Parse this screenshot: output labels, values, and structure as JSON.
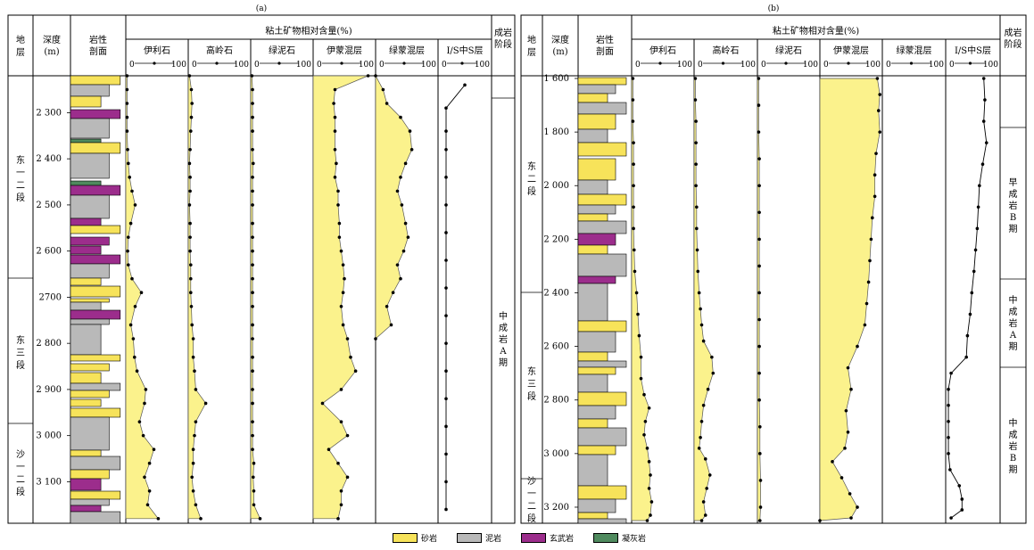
{
  "panels": [
    {
      "label": "(a)",
      "header": {
        "stratum": "地层",
        "depth": "深度\n(m)",
        "litho": "岩性\n剖面",
        "clay_group": "粘土矿物相对含量(%)",
        "stage": "成岩\n阶段"
      },
      "columns": [
        "伊利石",
        "高岭石",
        "绿泥石",
        "伊蒙混层",
        "绿蒙混层",
        "I/S中S层"
      ],
      "scale_min": "0",
      "scale_max": "100",
      "depth_ticks": [
        "2 300",
        "2 400",
        "2 500",
        "2 600",
        "2700",
        "2 800",
        "2 900",
        "3 000",
        "3 100"
      ],
      "depth_values": [
        2300,
        2400,
        2500,
        2600,
        2700,
        2800,
        2900,
        3000,
        3100
      ],
      "strata": [
        "东一二段",
        "东三段",
        "沙一二段"
      ],
      "stages": [
        "中成岩A期"
      ]
    },
    {
      "label": "(b)",
      "header": {
        "stratum": "地层",
        "depth": "深度\n(m)",
        "litho": "岩性\n剖面",
        "clay_group": "粘土矿物相对含量(%)",
        "stage": "成岩\n阶段"
      },
      "columns": [
        "伊利石",
        "高岭石",
        "绿泥石",
        "伊蒙混层",
        "绿蒙混层",
        "I/S中S层"
      ],
      "scale_min": "0",
      "scale_max": "100",
      "depth_ticks": [
        "1 600",
        "1 800",
        "2 000",
        "2 200",
        "2 400",
        "2 600",
        "2 800",
        "3 000",
        "3 200"
      ],
      "depth_values": [
        1600,
        1800,
        2000,
        2200,
        2400,
        2600,
        2800,
        3000,
        3200
      ],
      "strata": [
        "东二段",
        "东三段",
        "沙一二段"
      ],
      "stages": [
        "早成岩B期",
        "中成岩A期",
        "中成岩B期"
      ]
    }
  ],
  "legend": [
    {
      "label": "砂岩",
      "color": "#f7e35a"
    },
    {
      "label": "泥岩",
      "color": "#b9b9b9"
    },
    {
      "label": "玄武岩",
      "color": "#9c2d8c"
    },
    {
      "label": "凝灰岩",
      "color": "#4f8a5e"
    }
  ],
  "colors": {
    "fill": "#fbf28c",
    "sandstone": "#f7e35a",
    "mudstone": "#b9b9b9",
    "basalt": "#9c2d8c",
    "tuff": "#4f8a5e"
  },
  "chart_data": [
    {
      "type": "area",
      "title": "(a)",
      "ylabel": "深度(m)",
      "ylim": [
        2220,
        3190
      ],
      "xlim": [
        0,
        100
      ],
      "series": [
        {
          "name": "伊利石",
          "depth": [
            2220,
            2250,
            2280,
            2310,
            2340,
            2380,
            2410,
            2440,
            2470,
            2500,
            2540,
            2570,
            2600,
            2630,
            2660,
            2690,
            2720,
            2760,
            2790,
            2830,
            2860,
            2900,
            2930,
            2970,
            3000,
            3030,
            3060,
            3090,
            3120,
            3150,
            3180
          ],
          "values": [
            2,
            2,
            2,
            2,
            2,
            3,
            4,
            6,
            10,
            15,
            8,
            4,
            3,
            4,
            10,
            25,
            15,
            8,
            12,
            14,
            18,
            32,
            30,
            22,
            28,
            45,
            38,
            30,
            38,
            35,
            52
          ]
        },
        {
          "name": "高岭石",
          "depth": [
            2220,
            2250,
            2280,
            2310,
            2340,
            2380,
            2410,
            2440,
            2470,
            2500,
            2540,
            2570,
            2600,
            2630,
            2660,
            2690,
            2720,
            2760,
            2790,
            2830,
            2860,
            2900,
            2930,
            2970,
            3000,
            3030,
            3060,
            3090,
            3120,
            3150,
            3180
          ],
          "values": [
            2,
            5,
            6,
            5,
            4,
            3,
            2,
            3,
            3,
            2,
            3,
            3,
            3,
            4,
            4,
            4,
            5,
            6,
            8,
            8,
            10,
            12,
            28,
            12,
            10,
            8,
            8,
            6,
            8,
            12,
            20
          ]
        },
        {
          "name": "绿泥石",
          "depth": [
            2220,
            2250,
            2280,
            2310,
            2340,
            2380,
            2410,
            2440,
            2470,
            2500,
            2540,
            2570,
            2600,
            2630,
            2660,
            2690,
            2720,
            2760,
            2790,
            2830,
            2860,
            2900,
            2930,
            2970,
            3000,
            3030,
            3060,
            3090,
            3120,
            3150,
            3180
          ],
          "values": [
            2,
            3,
            3,
            3,
            3,
            3,
            4,
            3,
            3,
            3,
            3,
            3,
            3,
            3,
            3,
            3,
            3,
            3,
            3,
            3,
            3,
            3,
            3,
            3,
            3,
            3,
            5,
            4,
            5,
            5,
            15
          ]
        },
        {
          "name": "伊蒙混层",
          "depth": [
            2220,
            2250,
            2280,
            2310,
            2340,
            2380,
            2410,
            2440,
            2470,
            2500,
            2540,
            2570,
            2600,
            2630,
            2660,
            2690,
            2720,
            2760,
            2790,
            2830,
            2860,
            2900,
            2930,
            2970,
            3000,
            3030,
            3060,
            3090,
            3120,
            3150,
            3180
          ],
          "values": [
            88,
            35,
            33,
            35,
            35,
            35,
            37,
            35,
            40,
            40,
            42,
            42,
            45,
            48,
            50,
            48,
            45,
            48,
            55,
            60,
            68,
            45,
            15,
            45,
            55,
            25,
            40,
            55,
            45,
            45,
            40
          ]
        },
        {
          "name": "绿蒙混层",
          "depth": [
            2220,
            2250,
            2280,
            2310,
            2340,
            2380,
            2410,
            2440,
            2470,
            2500,
            2540,
            2570,
            2600,
            2630,
            2660,
            2690,
            2720,
            2760,
            2790
          ],
          "values": [
            0,
            12,
            18,
            40,
            55,
            58,
            48,
            40,
            35,
            42,
            48,
            52,
            45,
            35,
            40,
            28,
            18,
            25,
            0
          ]
        },
        {
          "name": "I/S中S层",
          "depth": [
            2240,
            2290,
            2340,
            2380,
            2440,
            2500,
            2560,
            2620,
            2680,
            2740,
            2800,
            2860,
            2920,
            2980,
            3040,
            3100,
            3160
          ],
          "values": [
            50,
            15,
            15,
            15,
            15,
            15,
            15,
            15,
            15,
            15,
            15,
            15,
            15,
            15,
            15,
            15,
            15
          ]
        }
      ]
    },
    {
      "type": "area",
      "title": "(b)",
      "ylabel": "深度(m)",
      "ylim": [
        1590,
        3260
      ],
      "xlim": [
        0,
        100
      ],
      "series": [
        {
          "name": "伊利石",
          "depth": [
            1600,
            1680,
            1760,
            1840,
            1920,
            2000,
            2080,
            2160,
            2240,
            2320,
            2400,
            2480,
            2560,
            2640,
            2720,
            2780,
            2830,
            2880,
            2930,
            2980,
            3030,
            3080,
            3130,
            3180,
            3230,
            3250
          ],
          "values": [
            2,
            2,
            2,
            3,
            3,
            3,
            3,
            3,
            4,
            5,
            8,
            10,
            12,
            15,
            15,
            20,
            28,
            22,
            20,
            25,
            28,
            30,
            28,
            32,
            30,
            25
          ]
        },
        {
          "name": "高岭石",
          "depth": [
            1600,
            1680,
            1760,
            1840,
            1920,
            2000,
            2080,
            2160,
            2240,
            2320,
            2400,
            2460,
            2520,
            2580,
            2640,
            2700,
            2760,
            2820,
            2880,
            2940,
            2980,
            3020,
            3080,
            3130,
            3180,
            3230,
            3250
          ],
          "values": [
            2,
            2,
            3,
            3,
            3,
            3,
            4,
            4,
            5,
            6,
            8,
            10,
            12,
            15,
            28,
            30,
            22,
            15,
            12,
            10,
            8,
            18,
            25,
            20,
            15,
            18,
            12
          ]
        },
        {
          "name": "绿泥石",
          "depth": [
            1600,
            1700,
            1800,
            1900,
            2000,
            2100,
            2200,
            2300,
            2400,
            2500,
            2600,
            2700,
            2800,
            2900,
            3000,
            3100,
            3200,
            3250
          ],
          "values": [
            2,
            2,
            2,
            3,
            3,
            3,
            3,
            3,
            3,
            3,
            3,
            3,
            3,
            4,
            4,
            5,
            5,
            4
          ]
        },
        {
          "name": "伊蒙混层",
          "depth": [
            1600,
            1660,
            1720,
            1800,
            1880,
            1960,
            2040,
            2120,
            2200,
            2280,
            2360,
            2440,
            2520,
            2600,
            2680,
            2760,
            2840,
            2920,
            2980,
            3030,
            3090,
            3150,
            3200,
            3240,
            3250
          ],
          "values": [
            92,
            96,
            94,
            96,
            90,
            88,
            88,
            84,
            82,
            80,
            78,
            75,
            72,
            60,
            45,
            50,
            42,
            45,
            40,
            20,
            35,
            48,
            60,
            50,
            0
          ]
        },
        {
          "name": "I/S中S层",
          "depth": [
            1600,
            1680,
            1760,
            1840,
            1920,
            2000,
            2080,
            2160,
            2240,
            2320,
            2400,
            2480,
            2560,
            2640,
            2700,
            2760,
            2820,
            2880,
            2940,
            3000,
            3060,
            3120,
            3170,
            3210,
            3240
          ],
          "values": [
            70,
            72,
            70,
            75,
            68,
            62,
            60,
            58,
            55,
            52,
            48,
            45,
            40,
            38,
            10,
            5,
            5,
            5,
            5,
            5,
            8,
            25,
            30,
            30,
            10
          ]
        }
      ]
    }
  ]
}
